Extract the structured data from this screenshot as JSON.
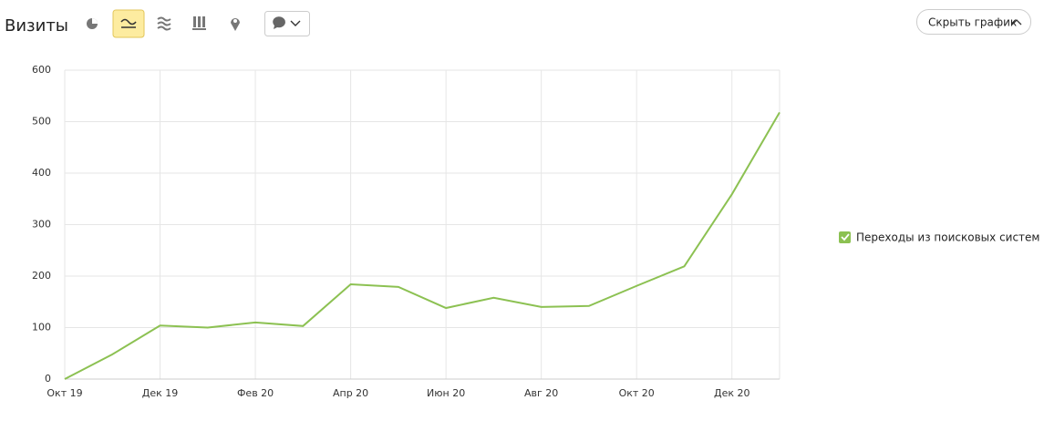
{
  "header": {
    "title": "Визиты",
    "hide_button": "Скрыть график"
  },
  "chart_data": {
    "type": "line",
    "categories": [
      "Окт 19",
      null,
      "Дек 19",
      null,
      "Фев 20",
      null,
      "Апр 20",
      null,
      "Июн 20",
      null,
      "Авг 20",
      null,
      "Окт 20",
      null,
      "Дек 20",
      null
    ],
    "series": [
      {
        "name": "Переходы из поисковых систем",
        "color": "#8cc152",
        "values": [
          0,
          48,
          104,
          100,
          110,
          103,
          184,
          179,
          138,
          158,
          140,
          142,
          181,
          219,
          359,
          518
        ]
      }
    ],
    "ylim": [
      0,
      600
    ],
    "yticks": [
      0,
      100,
      200,
      300,
      400,
      500,
      600
    ],
    "grid": true,
    "legend": "right"
  }
}
